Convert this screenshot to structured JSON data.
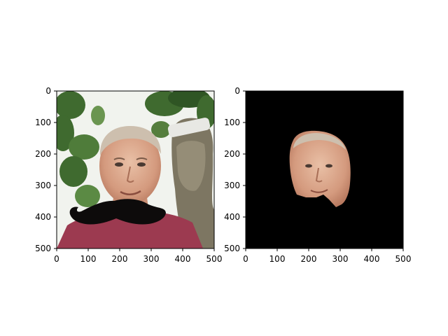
{
  "chart_data": [
    {
      "type": "image",
      "panel": "left",
      "description": "photo",
      "xlim": [
        0,
        500
      ],
      "ylim": [
        500,
        0
      ],
      "x_ticks": [
        0,
        100,
        200,
        300,
        400,
        500
      ],
      "y_ticks": [
        0,
        100,
        200,
        300,
        400,
        500
      ],
      "x_tick_labels": [
        "0",
        "100",
        "200",
        "300",
        "400",
        "500"
      ],
      "y_tick_labels": [
        "0",
        "100",
        "200",
        "300",
        "400",
        "500"
      ]
    },
    {
      "type": "image",
      "panel": "right",
      "description": "mask",
      "xlim": [
        0,
        500
      ],
      "ylim": [
        500,
        0
      ],
      "x_ticks": [
        0,
        100,
        200,
        300,
        400,
        500
      ],
      "y_ticks": [
        0,
        100,
        200,
        300,
        400,
        500
      ],
      "x_tick_labels": [
        "0",
        "100",
        "200",
        "300",
        "400",
        "500"
      ],
      "y_tick_labels": [
        "0",
        "100",
        "200",
        "300",
        "400",
        "500"
      ]
    }
  ],
  "colors": {
    "mask_background": "#000000",
    "axis": "#000000"
  }
}
